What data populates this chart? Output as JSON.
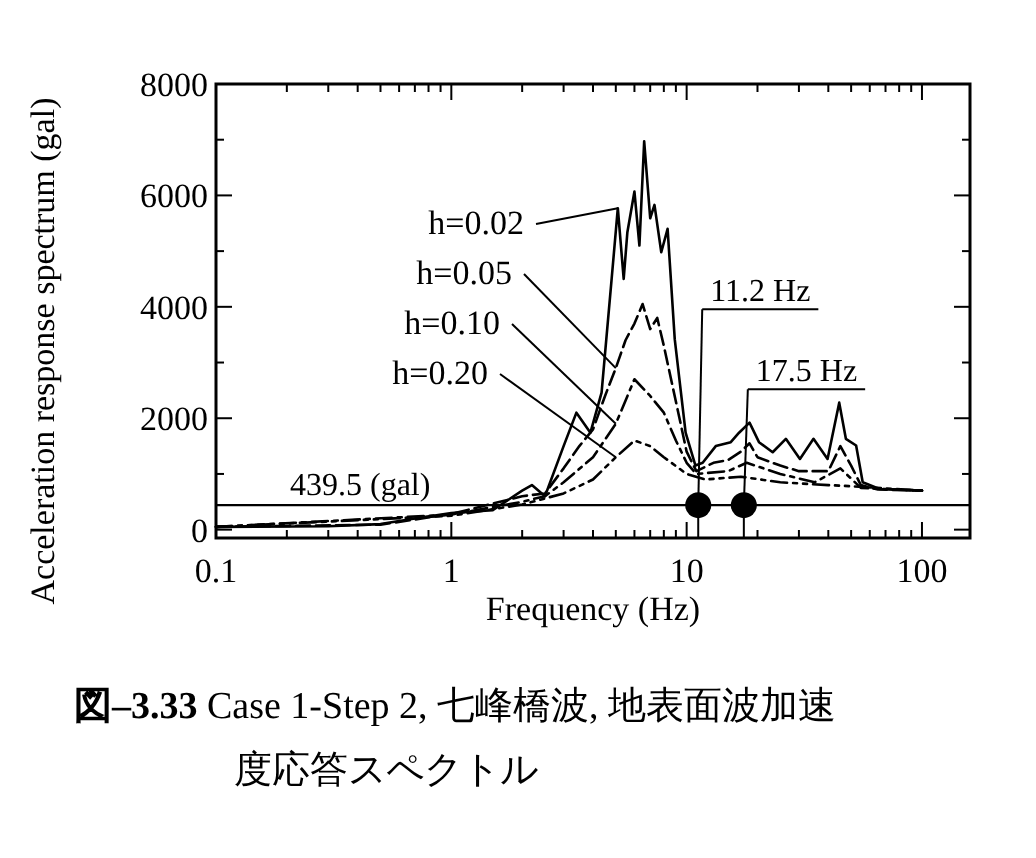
{
  "chart_data": {
    "type": "line",
    "title": "図–3.33 Case 1-Step 2, 七峰橋波, 地表面波加速度応答スペクトル",
    "xlabel": "Frequency (Hz)",
    "ylabel": "Acceleration response spectrum (gal)",
    "log": "x",
    "xlim": [
      0.1,
      160
    ],
    "xticks": [
      0.1,
      1,
      10,
      100
    ],
    "ylim": [
      -150,
      8000
    ],
    "yticks": [
      0,
      2000,
      4000,
      6000,
      8000
    ],
    "grid": false,
    "series": [
      {
        "name": "h=0.02",
        "color": "#000000",
        "line_style": "solid",
        "x": [
          0.1,
          0.3,
          0.5,
          0.7,
          1.0,
          1.5,
          2.0,
          2.2,
          2.5,
          3.0,
          3.4,
          3.9,
          4.35,
          4.8,
          5.1,
          5.4,
          5.6,
          6.0,
          6.3,
          6.6,
          7.0,
          7.3,
          7.8,
          8.3,
          8.9,
          9.9,
          10.9,
          11.7,
          13.3,
          15.4,
          16.7,
          18.5,
          20.3,
          23.2,
          26.4,
          30.3,
          34.6,
          39.7,
          44.5,
          47.5,
          52.5,
          56,
          66,
          100
        ],
        "values": [
          50,
          60,
          100,
          200,
          300,
          350,
          700,
          800,
          600,
          1500,
          2100,
          1740,
          2460,
          4500,
          5770,
          4500,
          5340,
          6070,
          5100,
          6970,
          5590,
          5830,
          4980,
          5400,
          3420,
          1740,
          1150,
          1200,
          1500,
          1570,
          1740,
          1920,
          1570,
          1390,
          1630,
          1270,
          1630,
          1270,
          2280,
          1630,
          1510,
          850,
          730,
          700
        ]
      },
      {
        "name": "h=0.05",
        "color": "#000000",
        "line_style": "dashed",
        "x": [
          0.1,
          0.5,
          1,
          2,
          2.5,
          3,
          3.5,
          4,
          4.5,
          5,
          5.5,
          6,
          6.5,
          7,
          7.5,
          8,
          9,
          10,
          11,
          13,
          15,
          17,
          18.5,
          20,
          25,
          30,
          40,
          45,
          50,
          55,
          65,
          100
        ],
        "values": [
          50,
          90,
          280,
          600,
          650,
          1100,
          1500,
          1800,
          2400,
          2900,
          3400,
          3700,
          4050,
          3600,
          3800,
          3300,
          2300,
          1400,
          1050,
          1200,
          1250,
          1400,
          1550,
          1300,
          1150,
          1050,
          1050,
          1500,
          1150,
          800,
          720,
          700
        ]
      },
      {
        "name": "h=0.10",
        "color": "#000000",
        "line_style": "dashdot",
        "x": [
          0.1,
          1,
          2,
          2.5,
          3,
          4,
          5,
          6,
          7,
          8,
          9,
          10,
          11,
          15,
          18,
          25,
          35,
          45,
          55,
          100
        ],
        "values": [
          50,
          270,
          500,
          600,
          850,
          1300,
          1900,
          2700,
          2400,
          2100,
          1600,
          1200,
          1000,
          1050,
          1200,
          1000,
          850,
          1100,
          750,
          700
        ]
      },
      {
        "name": "h=0.20",
        "color": "#000000",
        "line_style": "dashdotdot",
        "x": [
          0.1,
          1,
          2,
          3,
          4,
          5,
          6,
          7,
          8,
          10,
          12,
          17,
          25,
          40,
          50,
          100
        ],
        "values": [
          50,
          250,
          450,
          650,
          900,
          1300,
          1600,
          1500,
          1300,
          1000,
          900,
          950,
          850,
          800,
          780,
          700
        ]
      },
      {
        "type": "scatter",
        "marker": "circle",
        "color": "#000000",
        "x": [
          11.2,
          17.5
        ],
        "values": [
          439.5,
          439.5
        ]
      }
    ],
    "ref_lines": [
      {
        "axis": "y",
        "value": 439.5,
        "label": "439.5 (gal)",
        "color": "#000000"
      }
    ],
    "annotations": [
      {
        "text": "11.2 Hz",
        "x": 11.2,
        "y": 439.5
      },
      {
        "text": "17.5 Hz",
        "x": 17.5,
        "y": 439.5
      }
    ]
  }
}
